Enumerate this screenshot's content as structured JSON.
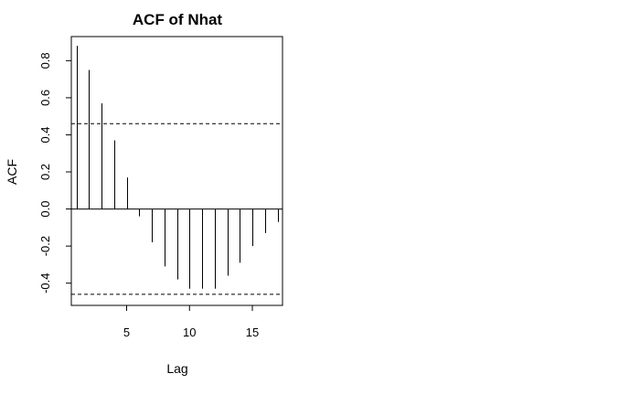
{
  "chart_data": {
    "type": "bar",
    "title": "ACF of Nhat",
    "xlabel": "Lag",
    "ylabel": "ACF",
    "xlim": [
      0.6,
      17.4
    ],
    "ylim": [
      -0.52,
      0.93
    ],
    "xticks": [
      "5",
      "10",
      "15"
    ],
    "yticks": [
      "-0.4",
      "-0.2",
      "0.0",
      "0.2",
      "0.4",
      "0.6",
      "0.8"
    ],
    "confidence_band": 0.46,
    "series": [
      {
        "x": [
          1,
          2,
          3,
          4,
          5,
          6,
          7,
          8,
          9,
          10,
          11,
          12,
          13,
          14,
          15,
          16,
          17
        ],
        "values": [
          0.88,
          0.75,
          0.57,
          0.37,
          0.17,
          -0.04,
          -0.18,
          -0.31,
          -0.38,
          -0.43,
          -0.43,
          -0.43,
          -0.36,
          -0.29,
          -0.2,
          -0.13,
          -0.07
        ]
      }
    ],
    "grid": false,
    "legend": "none"
  }
}
